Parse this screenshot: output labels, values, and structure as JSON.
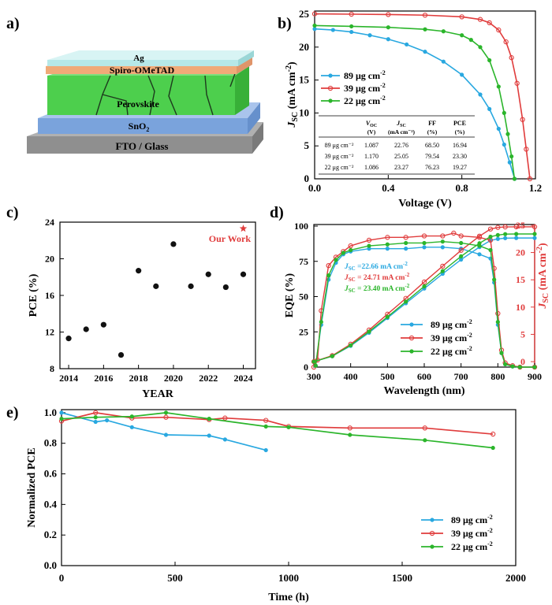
{
  "panel_labels": {
    "a": "a)",
    "b": "b)",
    "c": "c)",
    "d": "d)",
    "e": "e)"
  },
  "colors": {
    "blue": "#29a8e0",
    "red": "#e03c3c",
    "green": "#2bb52b",
    "star": "#e03c3c"
  },
  "panel_a": {
    "layers": [
      "Ag",
      "Spiro-OMeTAD",
      "Perovskite",
      "SnO2",
      "FTO / Glass"
    ],
    "sno2_main": "SnO",
    "sno2_sub": "2"
  },
  "chart_data": [
    {
      "panel": "b",
      "type": "line",
      "xlabel": "Voltage (V)",
      "ylabel_main": "J",
      "ylabel_sub": "SC",
      "ylabel_rest": " (mA cm",
      "ylabel_sup": "-2",
      "ylabel_end": ")",
      "xlim": [
        0.0,
        1.2
      ],
      "ylim": [
        0,
        25
      ],
      "xticks": [
        "0.0",
        "0.4",
        "0.8",
        "1.2"
      ],
      "xtick_values": [
        0.0,
        0.4,
        0.8,
        1.2
      ],
      "yticks": [
        "0",
        "5",
        "10",
        "15",
        "20",
        "25"
      ],
      "ytick_values": [
        0,
        5,
        10,
        15,
        20,
        25
      ],
      "series": [
        {
          "name": "89 μg cm",
          "sup": "-2",
          "color": "blue",
          "x": [
            0,
            0.1,
            0.2,
            0.3,
            0.4,
            0.5,
            0.6,
            0.7,
            0.8,
            0.9,
            0.95,
            1.0,
            1.03,
            1.06,
            1.087
          ],
          "y": [
            22.76,
            22.6,
            22.3,
            21.8,
            21.2,
            20.4,
            19.3,
            17.8,
            15.8,
            12.8,
            10.6,
            7.6,
            5.2,
            2.5,
            0
          ]
        },
        {
          "name": "39 μg cm",
          "sup": "-2",
          "color": "red",
          "x": [
            0,
            0.2,
            0.4,
            0.6,
            0.8,
            0.9,
            0.95,
            1.0,
            1.04,
            1.07,
            1.1,
            1.13,
            1.15,
            1.17
          ],
          "y": [
            25.05,
            25.0,
            24.95,
            24.85,
            24.6,
            24.2,
            23.7,
            22.6,
            20.8,
            18.4,
            14.5,
            9.0,
            4.5,
            0
          ]
        },
        {
          "name": "22 μg cm",
          "sup": "-2",
          "color": "green",
          "x": [
            0,
            0.2,
            0.4,
            0.6,
            0.7,
            0.8,
            0.85,
            0.9,
            0.95,
            1.0,
            1.03,
            1.05,
            1.07,
            1.086
          ],
          "y": [
            23.27,
            23.15,
            23.0,
            22.7,
            22.4,
            21.8,
            21.1,
            20.0,
            18.0,
            14.0,
            10.0,
            6.8,
            3.4,
            0
          ]
        }
      ],
      "table": {
        "headers": [
          [
            "",
            "",
            ""
          ],
          [
            "V",
            "OC",
            "(V)"
          ],
          [
            "J",
            "SC",
            "(mA cm⁻²)"
          ],
          [
            "FF",
            "",
            "(%)"
          ],
          [
            "PCE",
            "",
            "(%)"
          ]
        ],
        "rows": [
          [
            "89 μg cm⁻²",
            "1.087",
            "22.76",
            "68.50",
            "16.94"
          ],
          [
            "39 μg cm⁻²",
            "1.170",
            "25.05",
            "79.54",
            "23.30"
          ],
          [
            "22 μg cm⁻²",
            "1.086",
            "23.27",
            "76.23",
            "19.27"
          ]
        ]
      }
    },
    {
      "panel": "c",
      "type": "scatter",
      "xlabel": "YEAR",
      "ylabel": "PCE (%)",
      "xlim": [
        2013.5,
        2024.7
      ],
      "ylim": [
        8,
        24
      ],
      "xticks": [
        "2014",
        "2016",
        "2018",
        "2020",
        "2022",
        "2024"
      ],
      "xtick_values": [
        2014,
        2016,
        2018,
        2020,
        2022,
        2024
      ],
      "yticks": [
        "8",
        "12",
        "16",
        "20",
        "24"
      ],
      "ytick_values": [
        8,
        12,
        16,
        20,
        24
      ],
      "x": [
        2014,
        2015,
        2016,
        2017,
        2018,
        2019,
        2020,
        2021,
        2022,
        2023,
        2024
      ],
      "y": [
        11.3,
        12.3,
        12.8,
        9.5,
        18.7,
        17.0,
        21.6,
        17.0,
        18.3,
        16.9,
        18.3
      ],
      "highlight": {
        "x": 2024,
        "y": 23.3,
        "label": "Our Work"
      }
    },
    {
      "panel": "d",
      "type": "line",
      "xlabel": "Wavelength (nm)",
      "ylabel_left": "EQE (%)",
      "ylabel_right_main": "J",
      "ylabel_right_sub": "SC",
      "ylabel_right_rest": " (mA cm",
      "ylabel_right_sup": "-2",
      "ylabel_right_end": ")",
      "xlim": [
        300,
        900
      ],
      "ylim_left": [
        0,
        100
      ],
      "ylim_right": [
        -1,
        26
      ],
      "xticks": [
        "300",
        "400",
        "500",
        "600",
        "700",
        "800",
        "900"
      ],
      "xtick_values": [
        300,
        400,
        500,
        600,
        700,
        800,
        900
      ],
      "yticks_left": [
        "0",
        "25",
        "50",
        "75",
        "100"
      ],
      "ytick_left_values": [
        0,
        25,
        50,
        75,
        100
      ],
      "yticks_right": [
        "0",
        "5",
        "10",
        "15",
        "20",
        "25"
      ],
      "ytick_right_values": [
        0,
        5,
        10,
        15,
        20,
        25
      ],
      "annotations": [
        {
          "main": "J",
          "sub": "SC",
          "text": " =22.66 mA cm",
          "sup": "-2",
          "color": "blue"
        },
        {
          "main": "J",
          "sub": "SC",
          "text": " = 24.71 mA cm",
          "sup": "-2",
          "color": "red"
        },
        {
          "main": "J",
          "sub": "SC",
          "text": " = 23.40 mA cm",
          "sup": "-2",
          "color": "green"
        }
      ],
      "series": [
        {
          "name": "89 μg cm",
          "sup": "-2",
          "color": "blue",
          "eqe_x": [
            305,
            320,
            340,
            360,
            380,
            400,
            450,
            500,
            550,
            600,
            650,
            700,
            750,
            780,
            790,
            800,
            810,
            820,
            840,
            860,
            900
          ],
          "eqe_y": [
            1,
            30,
            62,
            74,
            80,
            82,
            84,
            84,
            84,
            85,
            85,
            84,
            80,
            77,
            60,
            30,
            10,
            2,
            0.5,
            0,
            0
          ],
          "jsc_x": [
            300,
            350,
            400,
            450,
            500,
            550,
            600,
            650,
            700,
            750,
            780,
            800,
            820,
            850,
            900
          ],
          "jsc_y": [
            0,
            1.0,
            2.9,
            5.3,
            8.0,
            10.7,
            13.4,
            16.1,
            18.7,
            21.0,
            22.2,
            22.5,
            22.63,
            22.66,
            22.66
          ]
        },
        {
          "name": "39 μg cm",
          "sup": "-2",
          "color": "red",
          "eqe_x": [
            300,
            310,
            320,
            340,
            360,
            380,
            400,
            450,
            500,
            550,
            600,
            650,
            680,
            700,
            750,
            780,
            790,
            800,
            810,
            820,
            840,
            860,
            900
          ],
          "eqe_y": [
            0,
            5,
            40,
            72,
            78,
            82,
            86,
            90,
            92,
            92,
            93,
            93,
            95,
            93,
            92,
            90,
            70,
            38,
            12,
            3,
            1,
            0,
            0
          ],
          "jsc_x": [
            300,
            350,
            400,
            450,
            500,
            550,
            600,
            650,
            700,
            750,
            780,
            800,
            820,
            850,
            900
          ],
          "jsc_y": [
            0,
            1.1,
            3.2,
            5.8,
            8.7,
            11.6,
            14.6,
            17.5,
            20.4,
            23.0,
            24.3,
            24.6,
            24.69,
            24.71,
            24.71
          ]
        },
        {
          "name": "22 μg cm",
          "sup": "-2",
          "color": "green",
          "eqe_x": [
            305,
            320,
            340,
            360,
            380,
            400,
            450,
            500,
            550,
            600,
            650,
            700,
            750,
            780,
            790,
            800,
            810,
            820,
            840,
            860,
            900
          ],
          "eqe_y": [
            1,
            32,
            65,
            76,
            81,
            83,
            86,
            87,
            88,
            88,
            89,
            88,
            86,
            83,
            62,
            32,
            10,
            2,
            0.5,
            0,
            0
          ],
          "jsc_x": [
            300,
            350,
            400,
            450,
            500,
            550,
            600,
            650,
            700,
            750,
            780,
            800,
            820,
            850,
            900
          ],
          "jsc_y": [
            0,
            1.0,
            3.0,
            5.5,
            8.2,
            11.0,
            13.8,
            16.6,
            19.3,
            21.7,
            22.9,
            23.2,
            23.37,
            23.4,
            23.4
          ]
        }
      ]
    },
    {
      "panel": "e",
      "type": "line",
      "xlabel": "Time (h)",
      "ylabel": "Normalized PCE",
      "xlim": [
        0,
        2000
      ],
      "ylim": [
        0.0,
        1.02
      ],
      "xticks": [
        "0",
        "500",
        "1000",
        "1500",
        "2000"
      ],
      "xtick_values": [
        0,
        500,
        1000,
        1500,
        2000
      ],
      "yticks": [
        "0.0",
        "0.2",
        "0.4",
        "0.6",
        "0.8",
        "1.0"
      ],
      "ytick_values": [
        0.0,
        0.2,
        0.4,
        0.6,
        0.8,
        1.0
      ],
      "series": [
        {
          "name": "89 μg cm",
          "sup": "-2",
          "color": "blue",
          "x": [
            0,
            150,
            200,
            310,
            460,
            650,
            720,
            900
          ],
          "y": [
            1.0,
            0.94,
            0.95,
            0.905,
            0.855,
            0.85,
            0.825,
            0.755
          ]
        },
        {
          "name": "39 μg cm",
          "sup": "-2",
          "color": "red",
          "x": [
            0,
            150,
            310,
            460,
            650,
            720,
            900,
            1000,
            1270,
            1600,
            1900
          ],
          "y": [
            0.945,
            1.0,
            0.965,
            0.97,
            0.955,
            0.965,
            0.95,
            0.91,
            0.9,
            0.9,
            0.86
          ]
        },
        {
          "name": "22 μg cm",
          "sup": "-2",
          "color": "green",
          "x": [
            0,
            150,
            310,
            460,
            650,
            900,
            1000,
            1270,
            1600,
            1900
          ],
          "y": [
            0.96,
            0.97,
            0.975,
            1.0,
            0.96,
            0.91,
            0.905,
            0.855,
            0.82,
            0.77
          ]
        }
      ]
    }
  ]
}
